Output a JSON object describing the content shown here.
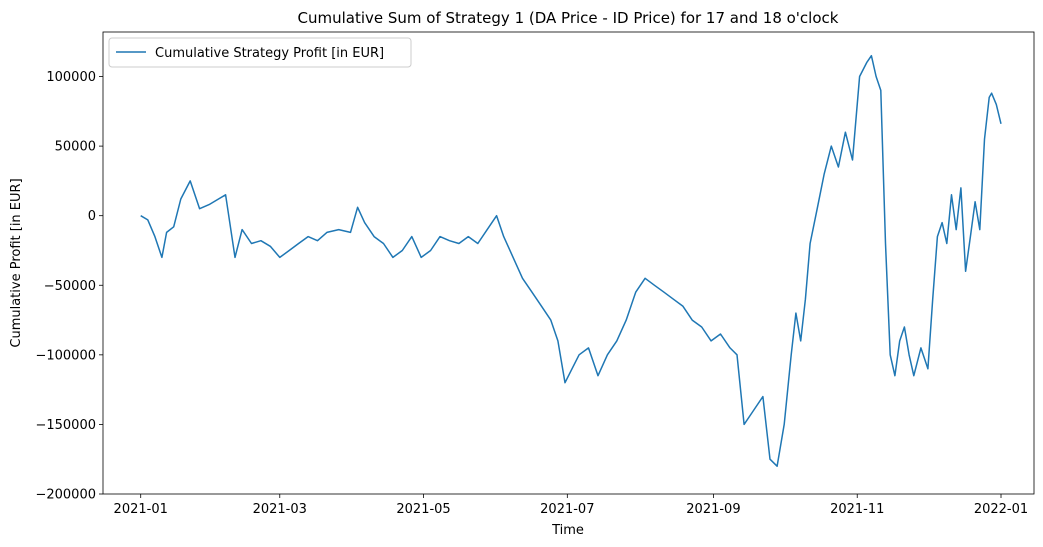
{
  "colors": {
    "series": "#1f77b4",
    "axis": "#000000",
    "background": "#ffffff"
  },
  "chart_data": {
    "type": "line",
    "title": "Cumulative Sum of Strategy 1 (DA Price - ID Price) for 17 and 18 o'clock",
    "xlabel": "Time",
    "ylabel": "Cumulative Profit [in EUR]",
    "grid": false,
    "legend": {
      "position": "top-left",
      "entries": [
        "Cumulative Strategy Profit [in EUR]"
      ]
    },
    "xlim": [
      "2020-12-16",
      "2022-01-15"
    ],
    "ylim": [
      -200000,
      132000
    ],
    "xticks": [
      {
        "date": "2021-01-01",
        "label": "2021-01"
      },
      {
        "date": "2021-03-01",
        "label": "2021-03"
      },
      {
        "date": "2021-05-01",
        "label": "2021-05"
      },
      {
        "date": "2021-07-01",
        "label": "2021-07"
      },
      {
        "date": "2021-09-01",
        "label": "2021-09"
      },
      {
        "date": "2021-11-01",
        "label": "2021-11"
      },
      {
        "date": "2022-01-01",
        "label": "2022-01"
      }
    ],
    "yticks": [
      {
        "value": 100000,
        "label": "100000"
      },
      {
        "value": 50000,
        "label": "50000"
      },
      {
        "value": 0,
        "label": "0"
      },
      {
        "value": -50000,
        "label": "−50000"
      },
      {
        "value": -100000,
        "label": "−100000"
      },
      {
        "value": -150000,
        "label": "−150000"
      },
      {
        "value": -200000,
        "label": "−200000"
      }
    ],
    "series": [
      {
        "name": "Cumulative Strategy Profit [in EUR]",
        "color": "#1f77b4",
        "x": [
          "2021-01-01",
          "2021-01-04",
          "2021-01-07",
          "2021-01-10",
          "2021-01-12",
          "2021-01-15",
          "2021-01-18",
          "2021-01-22",
          "2021-01-26",
          "2021-01-30",
          "2021-02-03",
          "2021-02-06",
          "2021-02-10",
          "2021-02-13",
          "2021-02-17",
          "2021-02-21",
          "2021-02-25",
          "2021-03-01",
          "2021-03-05",
          "2021-03-09",
          "2021-03-13",
          "2021-03-17",
          "2021-03-21",
          "2021-03-26",
          "2021-03-31",
          "2021-04-03",
          "2021-04-06",
          "2021-04-10",
          "2021-04-14",
          "2021-04-18",
          "2021-04-22",
          "2021-04-26",
          "2021-04-30",
          "2021-05-04",
          "2021-05-08",
          "2021-05-12",
          "2021-05-16",
          "2021-05-20",
          "2021-05-24",
          "2021-05-28",
          "2021-06-01",
          "2021-06-04",
          "2021-06-08",
          "2021-06-12",
          "2021-06-16",
          "2021-06-20",
          "2021-06-24",
          "2021-06-27",
          "2021-06-30",
          "2021-07-03",
          "2021-07-06",
          "2021-07-10",
          "2021-07-14",
          "2021-07-18",
          "2021-07-22",
          "2021-07-26",
          "2021-07-30",
          "2021-08-03",
          "2021-08-07",
          "2021-08-11",
          "2021-08-15",
          "2021-08-19",
          "2021-08-23",
          "2021-08-27",
          "2021-08-31",
          "2021-09-04",
          "2021-09-08",
          "2021-09-11",
          "2021-09-14",
          "2021-09-18",
          "2021-09-22",
          "2021-09-25",
          "2021-09-28",
          "2021-10-01",
          "2021-10-04",
          "2021-10-06",
          "2021-10-08",
          "2021-10-10",
          "2021-10-12",
          "2021-10-15",
          "2021-10-18",
          "2021-10-21",
          "2021-10-24",
          "2021-10-27",
          "2021-10-30",
          "2021-11-02",
          "2021-11-05",
          "2021-11-07",
          "2021-11-09",
          "2021-11-11",
          "2021-11-13",
          "2021-11-15",
          "2021-11-17",
          "2021-11-19",
          "2021-11-21",
          "2021-11-23",
          "2021-11-25",
          "2021-11-28",
          "2021-12-01",
          "2021-12-03",
          "2021-12-05",
          "2021-12-07",
          "2021-12-09",
          "2021-12-11",
          "2021-12-13",
          "2021-12-15",
          "2021-12-17",
          "2021-12-19",
          "2021-12-21",
          "2021-12-23",
          "2021-12-25",
          "2021-12-27",
          "2021-12-28",
          "2021-12-30",
          "2022-01-01"
        ],
        "values": [
          0,
          -3000,
          -15000,
          -30000,
          -12000,
          -8000,
          12000,
          25000,
          5000,
          8000,
          12000,
          15000,
          -30000,
          -10000,
          -20000,
          -18000,
          -22000,
          -30000,
          -25000,
          -20000,
          -15000,
          -18000,
          -12000,
          -10000,
          -12000,
          6000,
          -5000,
          -15000,
          -20000,
          -30000,
          -25000,
          -15000,
          -30000,
          -25000,
          -15000,
          -18000,
          -20000,
          -15000,
          -20000,
          -10000,
          0,
          -15000,
          -30000,
          -45000,
          -55000,
          -65000,
          -75000,
          -90000,
          -120000,
          -110000,
          -100000,
          -95000,
          -115000,
          -100000,
          -90000,
          -75000,
          -55000,
          -45000,
          -50000,
          -55000,
          -60000,
          -65000,
          -75000,
          -80000,
          -90000,
          -85000,
          -95000,
          -100000,
          -150000,
          -140000,
          -130000,
          -175000,
          -180000,
          -150000,
          -100000,
          -70000,
          -90000,
          -60000,
          -20000,
          5000,
          30000,
          50000,
          35000,
          60000,
          40000,
          100000,
          110000,
          115000,
          100000,
          90000,
          -20000,
          -100000,
          -115000,
          -90000,
          -80000,
          -100000,
          -115000,
          -95000,
          -110000,
          -60000,
          -15000,
          -5000,
          -20000,
          15000,
          -10000,
          20000,
          -40000,
          -15000,
          10000,
          -10000,
          55000,
          85000,
          88000,
          80000,
          66000
        ]
      }
    ]
  }
}
